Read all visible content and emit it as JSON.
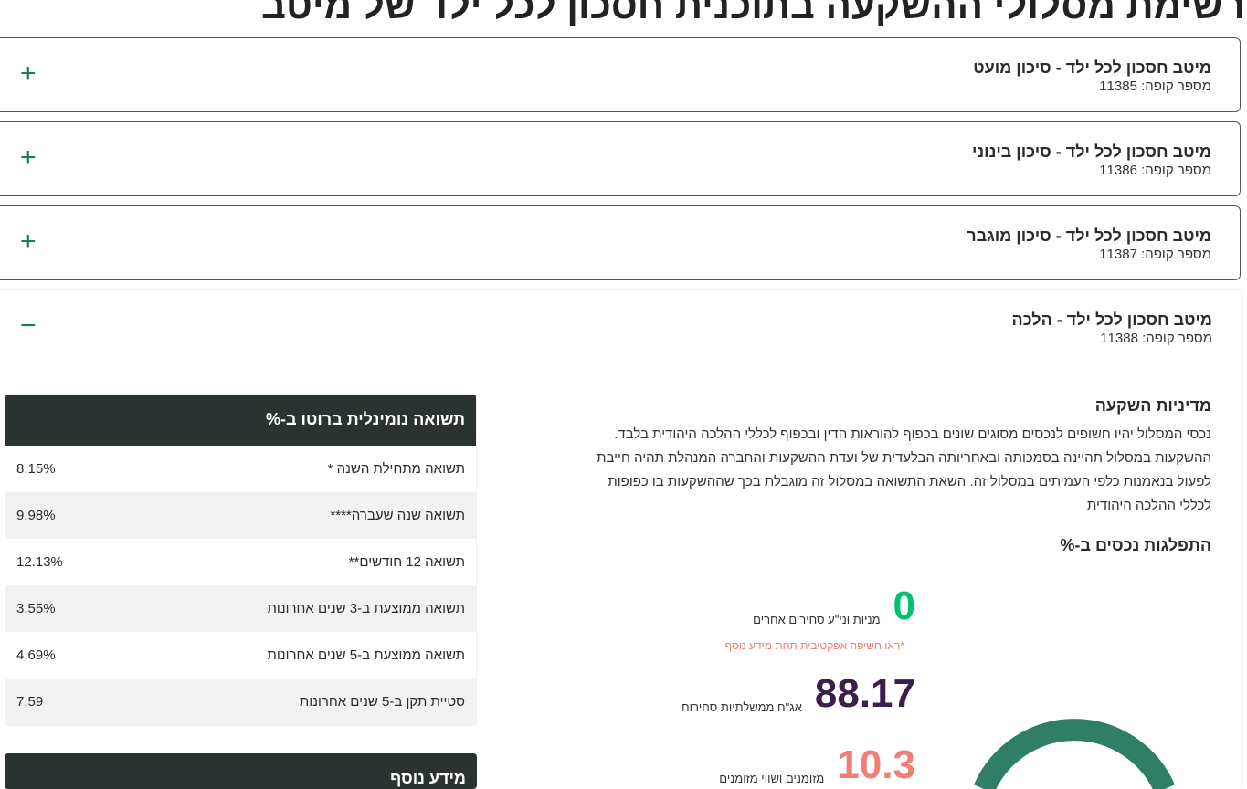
{
  "page_title": "רשימת מסלולי ההשקעה בתוכנית חסכון לכל ילד של מיטב",
  "tracks": [
    {
      "name": "מיטב חסכון לכל ילד - סיכון מועט",
      "fund": "מספר קופה: 11385",
      "toggle": "+"
    },
    {
      "name": "מיטב חסכון לכל ילד - סיכון בינוני",
      "fund": "מספר קופה: 11386",
      "toggle": "+"
    },
    {
      "name": "מיטב חסכון לכל ילד - סיכון מוגבר",
      "fund": "מספר קופה: 11387",
      "toggle": "+"
    },
    {
      "name": "מיטב חסכון לכל ילד - הלכה",
      "fund": "מספר קופה: 11388",
      "toggle": "−"
    }
  ],
  "policy": {
    "title": "מדיניות השקעה",
    "lines": [
      "נכסי המסלול יהיו חשופים לנכסים מסוגים שונים בכפוף להוראות הדין ובכפוף לכללי ההלכה היהודית בלבד.",
      "ההשקעות במסלול תהיינה בסמכותה ובאחריותה הבלעדית של ועדת ההשקעות והחברה המנהלת תהיה חייבת",
      "לפעול בנאמנות כלפי העמיתים במסלול זה. השאת התשואה במסלול זה מוגבלת בכך שההשקעות בו כפופות",
      "לכללי ההלכה היהודית"
    ]
  },
  "allocation": {
    "title": "התפלגות נכסים ב-%",
    "note": "*ראו חשיפה אפקטיבית תחת מידע נוסף",
    "items": [
      {
        "value": "0",
        "label": "מניות וני\"ע סחירים אחרים",
        "color": "#00c16e"
      },
      {
        "value": "88.17",
        "label": "אג\"ח ממשלתיות סחירות",
        "color": "#3b1f4a"
      },
      {
        "value": "10.3",
        "label": "מזומנים ושווי מזומנים",
        "color": "#f07f74"
      }
    ],
    "ring_color": "#2f7f68"
  },
  "returns": {
    "title": "תשואה נומינלית ברוטו ב-%",
    "rows": [
      {
        "label": "תשואה מתחילת השנה *",
        "value": "8.15%"
      },
      {
        "label": "תשואה שנה שעברה****",
        "value": "9.98%"
      },
      {
        "label": "תשואה 12 חודשים**",
        "value": "12.13%"
      },
      {
        "label": "תשואה ממוצעת ב-3 שנים אחרונות",
        "value": "3.55%"
      },
      {
        "label": "תשואה ממוצעת ב-5 שנים אחרונות",
        "value": "4.69%"
      },
      {
        "label": "סטיית תקן ב-5 שנים אחרונות",
        "value": "7.59"
      }
    ]
  },
  "more_info": {
    "title": "מידע נוסף"
  }
}
